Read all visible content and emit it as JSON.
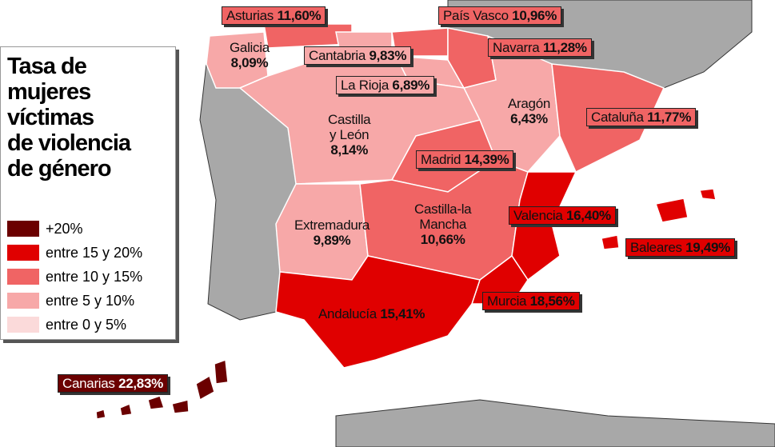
{
  "legend": {
    "title": "Tasa de\nmujeres\nvíctimas\nde violencia\nde género",
    "items": [
      {
        "label": "+20%",
        "color": "#6b0000"
      },
      {
        "label": "entre 15 y 20%",
        "color": "#e00000"
      },
      {
        "label": "entre 10 y 15%",
        "color": "#f06464"
      },
      {
        "label": "entre 5 y 10%",
        "color": "#f7a8a8"
      },
      {
        "label": "entre 0 y 5%",
        "color": "#fbdada"
      }
    ]
  },
  "regions": [
    {
      "name": "Asturias",
      "value": 11.6,
      "value_label": "11,60%",
      "color": "#f06464"
    },
    {
      "name": "Galicia",
      "value": 8.09,
      "value_label": "8,09%",
      "color": "#f7a8a8"
    },
    {
      "name": "Cantabria",
      "value": 9.83,
      "value_label": "9,83%",
      "color": "#f7a8a8"
    },
    {
      "name": "País Vasco",
      "value": 10.96,
      "value_label": "10,96%",
      "color": "#f06464"
    },
    {
      "name": "Navarra",
      "value": 11.28,
      "value_label": "11,28%",
      "color": "#f06464"
    },
    {
      "name": "La Rioja",
      "value": 6.89,
      "value_label": "6,89%",
      "color": "#f7a8a8"
    },
    {
      "name": "Aragón",
      "value": 6.43,
      "value_label": "6,43%",
      "color": "#f7a8a8"
    },
    {
      "name": "Cataluña",
      "value": 11.77,
      "value_label": "11,77%",
      "color": "#f06464"
    },
    {
      "name": "Castilla\ny León",
      "value": 8.14,
      "value_label": "8,14%",
      "color": "#f7a8a8"
    },
    {
      "name": "Madrid",
      "value": 14.39,
      "value_label": "14,39%",
      "color": "#f06464"
    },
    {
      "name": "Extremadura",
      "value": 9.89,
      "value_label": "9,89%",
      "color": "#f7a8a8"
    },
    {
      "name": "Castilla-la\nMancha",
      "value": 10.66,
      "value_label": "10,66%",
      "color": "#f06464"
    },
    {
      "name": "Valencia",
      "value": 16.4,
      "value_label": "16,40%",
      "color": "#e00000"
    },
    {
      "name": "Baleares",
      "value": 19.49,
      "value_label": "19,49%",
      "color": "#e00000"
    },
    {
      "name": "Murcia",
      "value": 18.56,
      "value_label": "18,56%",
      "color": "#e00000"
    },
    {
      "name": "Andalucía",
      "value": 15.41,
      "value_label": "15,41%",
      "color": "#e00000"
    },
    {
      "name": "Canarias",
      "value": 22.83,
      "value_label": "22,83%",
      "color": "#6b0000"
    }
  ]
}
